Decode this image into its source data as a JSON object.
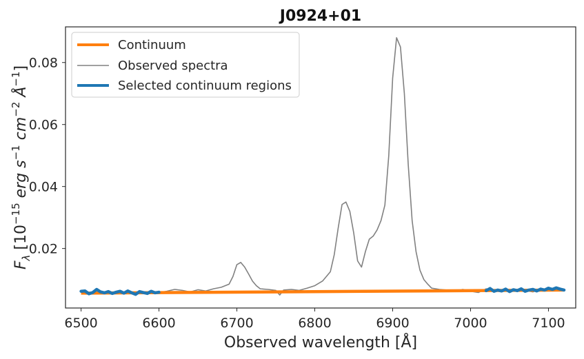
{
  "chart_data": {
    "type": "line",
    "title": "J0924+01",
    "xlabel": "Observed wavelength [Å]",
    "ylabel": "F_λ [10^-15 erg s^-1 cm^-2 Å^-1]",
    "ylabel_parts": {
      "f": "F",
      "lambda": "λ",
      "open": " [10",
      "exp1": "−15",
      "erg": " erg s",
      "exp2": "−1",
      "cm": " cm",
      "exp3": "−2",
      "ang": " Å",
      "exp4": "−1",
      "close": "]"
    },
    "xlim": [
      6480,
      7135
    ],
    "ylim": [
      0.0008,
      0.0915
    ],
    "xticks": [
      6500,
      6600,
      6700,
      6800,
      6900,
      7000,
      7100
    ],
    "yticks": [
      0.02,
      0.04,
      0.06,
      0.08
    ],
    "ytick_labels": [
      "0.02",
      "0.04",
      "0.06",
      "0.08"
    ],
    "legend": [
      "Continuum",
      "Observed spectra",
      "Selected continuum regions"
    ],
    "legend_position": "upper-left",
    "grid": false,
    "series": [
      {
        "name": "Continuum",
        "color": "#ff7f0e",
        "x": [
          6500,
          7120
        ],
        "y": [
          0.0056,
          0.0066
        ]
      },
      {
        "name": "Observed spectra",
        "color": "#808080",
        "x": [
          6500,
          6510,
          6520,
          6530,
          6540,
          6550,
          6560,
          6570,
          6580,
          6590,
          6600,
          6610,
          6620,
          6630,
          6640,
          6650,
          6660,
          6670,
          6680,
          6690,
          6695,
          6700,
          6705,
          6710,
          6715,
          6720,
          6725,
          6730,
          6740,
          6750,
          6755,
          6760,
          6770,
          6780,
          6790,
          6800,
          6810,
          6820,
          6825,
          6830,
          6835,
          6840,
          6845,
          6850,
          6855,
          6860,
          6865,
          6870,
          6875,
          6880,
          6885,
          6890,
          6895,
          6900,
          6905,
          6910,
          6915,
          6920,
          6925,
          6930,
          6935,
          6940,
          6945,
          6950,
          6960,
          6970,
          6980,
          6990,
          7000,
          7010,
          7020,
          7030,
          7040,
          7050,
          7060,
          7070,
          7080,
          7090,
          7100,
          7110,
          7120
        ],
        "y": [
          0.0062,
          0.0057,
          0.0065,
          0.0055,
          0.006,
          0.0056,
          0.0061,
          0.0054,
          0.006,
          0.0056,
          0.0058,
          0.0062,
          0.0068,
          0.0065,
          0.006,
          0.0067,
          0.0063,
          0.007,
          0.0075,
          0.0085,
          0.011,
          0.0148,
          0.0155,
          0.014,
          0.0118,
          0.0095,
          0.008,
          0.007,
          0.0068,
          0.0065,
          0.005,
          0.0066,
          0.0068,
          0.0065,
          0.0072,
          0.008,
          0.0095,
          0.0125,
          0.018,
          0.0265,
          0.0342,
          0.035,
          0.032,
          0.025,
          0.016,
          0.014,
          0.019,
          0.023,
          0.024,
          0.026,
          0.029,
          0.034,
          0.05,
          0.075,
          0.088,
          0.085,
          0.07,
          0.047,
          0.029,
          0.019,
          0.013,
          0.01,
          0.0085,
          0.0072,
          0.0068,
          0.0066,
          0.0061,
          0.0068,
          0.0062,
          0.0058,
          0.007,
          0.0064,
          0.006,
          0.0068,
          0.0062,
          0.0065,
          0.006,
          0.0069,
          0.0066,
          0.0072,
          0.0066
        ]
      },
      {
        "name": "Selected continuum regions",
        "color": "#1f77b4",
        "segments": [
          {
            "x": [
              6500,
              6505,
              6510,
              6515,
              6520,
              6525,
              6530,
              6535,
              6540,
              6545,
              6550,
              6555,
              6560,
              6565,
              6570,
              6575,
              6580,
              6585,
              6590,
              6595,
              6600
            ],
            "y": [
              0.0062,
              0.0063,
              0.0054,
              0.0058,
              0.0068,
              0.006,
              0.0057,
              0.0061,
              0.0055,
              0.0059,
              0.0062,
              0.0056,
              0.0063,
              0.0057,
              0.0052,
              0.0061,
              0.0058,
              0.0055,
              0.0062,
              0.0057,
              0.0059
            ]
          },
          {
            "x": [
              7020,
              7025,
              7030,
              7035,
              7040,
              7045,
              7050,
              7055,
              7060,
              7065,
              7070,
              7075,
              7080,
              7085,
              7090,
              7095,
              7100,
              7105,
              7110,
              7115,
              7120
            ],
            "y": [
              0.0064,
              0.0071,
              0.0062,
              0.0066,
              0.0063,
              0.0069,
              0.0061,
              0.0067,
              0.0064,
              0.007,
              0.0062,
              0.0066,
              0.0068,
              0.0063,
              0.0069,
              0.0066,
              0.0072,
              0.0068,
              0.0073,
              0.0069,
              0.0066
            ]
          }
        ]
      }
    ]
  }
}
